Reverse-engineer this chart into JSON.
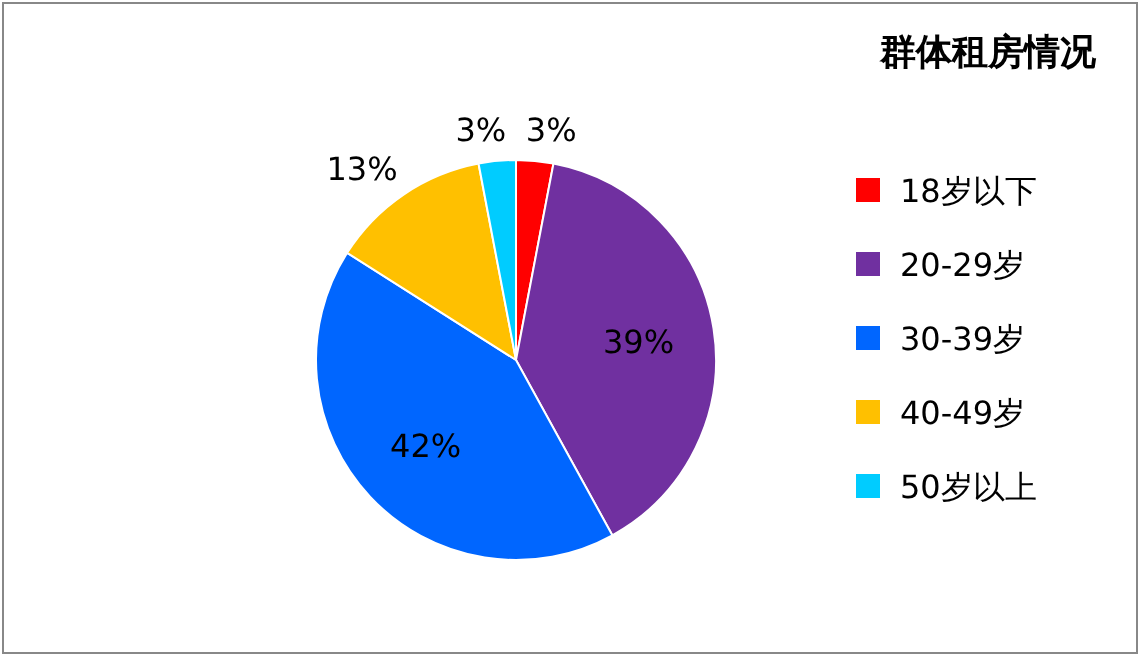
{
  "chart_data": {
    "type": "pie",
    "title": "群体租房情况",
    "categories": [
      "18岁以下",
      "20-29岁",
      "30-39岁",
      "40-49岁",
      "50岁以上"
    ],
    "values": [
      3,
      39,
      42,
      13,
      3
    ],
    "colors": [
      "#ff0000",
      "#7030a0",
      "#0066ff",
      "#ffc000",
      "#00ccff"
    ],
    "value_labels": [
      "3%",
      "39%",
      "42%",
      "13%",
      "3%"
    ],
    "legend": "right"
  }
}
